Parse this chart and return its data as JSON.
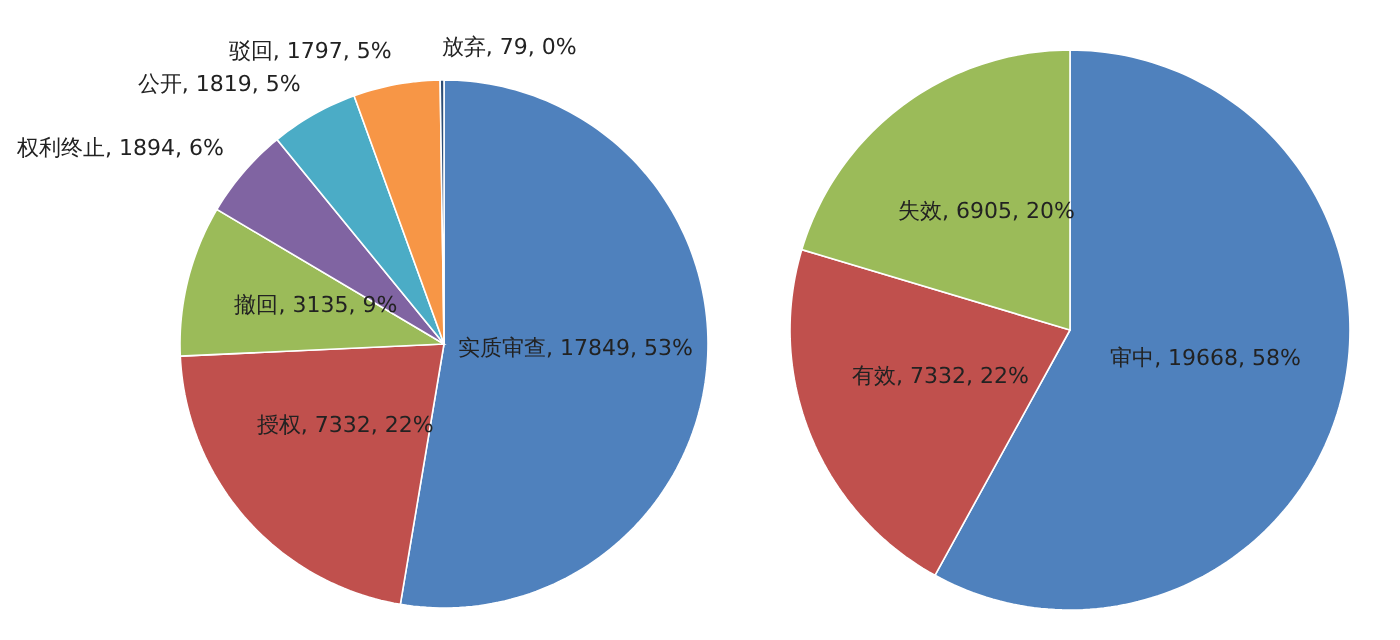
{
  "chart_data": [
    {
      "type": "pie",
      "categories": [
        "实质审查",
        "授权",
        "撤回",
        "权利终止",
        "公开",
        "驳回",
        "放弃"
      ],
      "values": [
        17849,
        7332,
        3135,
        1894,
        1819,
        1797,
        79
      ],
      "value_labels": [
        "17849, 53%",
        "7332, 22%",
        "3135, 9%",
        "1894, 6%",
        "1819, 5%",
        "1797, 5%",
        "79, 0%"
      ],
      "colors": [
        "#4f81bd",
        "#c0504d",
        "#9bbb59",
        "#8064a2",
        "#4bacc6",
        "#f79646",
        "#2c4d75"
      ]
    },
    {
      "type": "pie",
      "categories": [
        "审中",
        "有效",
        "失效"
      ],
      "values": [
        19668,
        7332,
        6905
      ],
      "value_labels": [
        "19668, 58%",
        "7332, 22%",
        "6905, 20%"
      ],
      "colors": [
        "#4f81bd",
        "#c0504d",
        "#9bbb59"
      ]
    }
  ]
}
